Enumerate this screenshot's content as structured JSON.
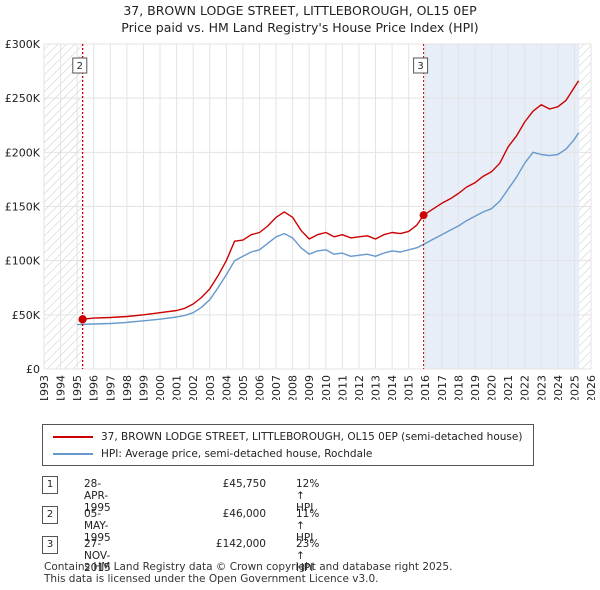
{
  "title_line1": "37, BROWN LODGE STREET, LITTLEBOROUGH, OL15 0EP",
  "title_line2": "Price paid vs. HM Land Registry's House Price Index (HPI)",
  "chart_data": {
    "type": "line",
    "title": "37, BROWN LODGE STREET, LITTLEBOROUGH, OL15 0EP — Price paid vs. HM Land Registry's House Price Index (HPI)",
    "xlim": [
      1993,
      2026
    ],
    "ylim": [
      0,
      300000
    ],
    "x_ticks": [
      1993,
      1994,
      1995,
      1996,
      1997,
      1998,
      1999,
      2000,
      2001,
      2002,
      2003,
      2004,
      2005,
      2006,
      2007,
      2008,
      2009,
      2010,
      2011,
      2012,
      2013,
      2014,
      2015,
      2016,
      2017,
      2018,
      2019,
      2020,
      2021,
      2022,
      2023,
      2024,
      2025,
      2026
    ],
    "y_ticks": [
      0,
      50000,
      100000,
      150000,
      200000,
      250000,
      300000
    ],
    "y_tick_labels": [
      "£0",
      "£50K",
      "£100K",
      "£150K",
      "£200K",
      "£250K",
      "£300K"
    ],
    "grid": true,
    "shaded_regions": [
      {
        "from": 1993,
        "to": 1995.32,
        "style": "hatched"
      },
      {
        "from": 1995.34,
        "to": 2015.9,
        "style": "none"
      },
      {
        "from": 2015.9,
        "to": 2025.3,
        "style": "light-blue"
      },
      {
        "from": 2025.3,
        "to": 2026,
        "style": "hatched"
      }
    ],
    "series": [
      {
        "name": "37, BROWN LODGE STREET, LITTLEBOROUGH, OL15 0EP (semi-detached house)",
        "color": "#cc0000",
        "x": [
          1995.34,
          1996,
          1997,
          1998,
          1999,
          2000,
          2001,
          2001.5,
          2002,
          2002.5,
          2003,
          2003.5,
          2004,
          2004.5,
          2005,
          2005.5,
          2006,
          2006.5,
          2007,
          2007.5,
          2008,
          2008.5,
          2009,
          2009.5,
          2010,
          2010.5,
          2011,
          2011.5,
          2012,
          2012.5,
          2013,
          2013.5,
          2014,
          2014.5,
          2015,
          2015.5,
          2015.9,
          2016.5,
          2017,
          2017.5,
          2018,
          2018.5,
          2019,
          2019.5,
          2020,
          2020.5,
          2021,
          2021.5,
          2022,
          2022.5,
          2023,
          2023.5,
          2024,
          2024.5,
          2025,
          2025.25
        ],
        "y": [
          46000,
          47000,
          47500,
          48500,
          50000,
          52000,
          54000,
          56000,
          60000,
          66000,
          74000,
          86000,
          100000,
          118000,
          119000,
          124000,
          126000,
          132000,
          140000,
          145000,
          140000,
          128000,
          120000,
          124000,
          126000,
          122000,
          124000,
          121000,
          122000,
          123000,
          120000,
          124000,
          126000,
          125000,
          127000,
          133000,
          142000,
          148000,
          153000,
          157000,
          162000,
          168000,
          172000,
          178000,
          182000,
          190000,
          205000,
          215000,
          228000,
          238000,
          244000,
          240000,
          242000,
          248000,
          260000,
          266000
        ]
      },
      {
        "name": "HPI: Average price, semi-detached house, Rochdale",
        "color": "#6699cc",
        "x": [
          1995,
          1996,
          1997,
          1998,
          1999,
          2000,
          2001,
          2001.5,
          2002,
          2002.5,
          2003,
          2003.5,
          2004,
          2004.5,
          2005,
          2005.5,
          2006,
          2006.5,
          2007,
          2007.5,
          2008,
          2008.5,
          2009,
          2009.5,
          2010,
          2010.5,
          2011,
          2011.5,
          2012,
          2012.5,
          2013,
          2013.5,
          2014,
          2014.5,
          2015,
          2015.5,
          2015.9,
          2016.5,
          2017,
          2017.5,
          2018,
          2018.5,
          2019,
          2019.5,
          2020,
          2020.5,
          2021,
          2021.5,
          2022,
          2022.5,
          2023,
          2023.5,
          2024,
          2024.5,
          2025,
          2025.25
        ],
        "y": [
          41000,
          41500,
          42000,
          43000,
          44500,
          46000,
          48000,
          49500,
          52000,
          57000,
          64000,
          75000,
          87000,
          100000,
          104000,
          108000,
          110000,
          116000,
          122000,
          125000,
          121000,
          112000,
          106000,
          109000,
          110000,
          106000,
          107000,
          104000,
          105000,
          106000,
          104000,
          107000,
          109000,
          108000,
          110000,
          112000,
          115000,
          120000,
          124000,
          128000,
          132000,
          137000,
          141000,
          145000,
          148000,
          155000,
          166000,
          177000,
          190000,
          200000,
          198000,
          197000,
          198000,
          203000,
          212000,
          218000
        ]
      }
    ],
    "markers": [
      {
        "label": "1",
        "x": 1995.32,
        "y": 45750
      },
      {
        "label": "2",
        "x": 1995.34,
        "y": 46000
      },
      {
        "label": "3",
        "x": 2015.9,
        "y": 142000
      }
    ],
    "boxed_labels_shown": [
      "2",
      "3"
    ]
  },
  "legend": {
    "red_label": "37, BROWN LODGE STREET, LITTLEBOROUGH, OL15 0EP (semi-detached house)",
    "blue_label": "HPI: Average price, semi-detached house, Rochdale",
    "red_color": "#cc0000",
    "blue_color": "#6699cc"
  },
  "transactions": [
    {
      "num": "1",
      "date": "28-APR-1995",
      "price": "£45,750",
      "hpi": "12% ↑ HPI"
    },
    {
      "num": "2",
      "date": "05-MAY-1995",
      "price": "£46,000",
      "hpi": "11% ↑ HPI"
    },
    {
      "num": "3",
      "date": "27-NOV-2015",
      "price": "£142,000",
      "hpi": "23% ↑ HPI"
    }
  ],
  "footer": {
    "line1": "Contains HM Land Registry data © Crown copyright and database right 2025.",
    "line2": "This data is licensed under the Open Government Licence v3.0."
  }
}
